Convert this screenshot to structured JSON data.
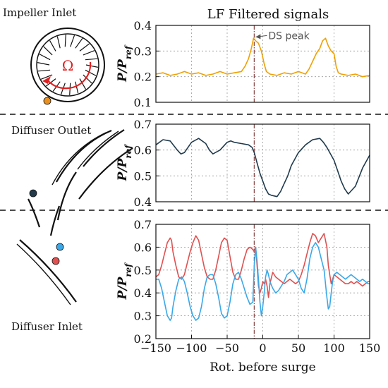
{
  "figure": {
    "title": "LF Filtered signals",
    "left_labels": [
      "Impeller Inlet",
      "Diffuser Outlet",
      "Diffuser Inlet"
    ],
    "omega_symbol": "Ω"
  },
  "colors": {
    "impeller_signal": "#f0a000",
    "diffuser_outlet_signal": "#1f3a4d",
    "diffuser_inlet_red": "#e05050",
    "diffuser_inlet_blue": "#3aa8e8",
    "sensor_orange": "#e89020",
    "sensor_dark": "#223a4a",
    "sensor_red": "#e05050",
    "sensor_blue": "#3aa8e8",
    "rotation_arrow": "#e02020",
    "marker_line": "#8b4a4a"
  },
  "chart_data": [
    {
      "type": "line",
      "panel": "Impeller Inlet",
      "title": "LF Filtered signals",
      "ylabel": "P/Pref",
      "xlim": [
        -150,
        150
      ],
      "ylim": [
        0.1,
        0.4
      ],
      "yticks": [
        0.1,
        0.2,
        0.3,
        0.4
      ],
      "grid": true,
      "marker_x": -12,
      "annotation": {
        "text": "DS peak",
        "x": -12,
        "y": 0.355
      },
      "series": [
        {
          "color": "#f0a000",
          "x": [
            -150,
            -140,
            -130,
            -120,
            -110,
            -100,
            -90,
            -80,
            -70,
            -60,
            -50,
            -40,
            -30,
            -25,
            -20,
            -16,
            -13,
            -10,
            -6,
            -2,
            2,
            5,
            10,
            20,
            30,
            40,
            50,
            60,
            65,
            70,
            75,
            80,
            84,
            88,
            92,
            96,
            100,
            103,
            106,
            110,
            120,
            130,
            140,
            150
          ],
          "y": [
            0.21,
            0.215,
            0.205,
            0.21,
            0.22,
            0.21,
            0.215,
            0.205,
            0.21,
            0.22,
            0.21,
            0.215,
            0.22,
            0.24,
            0.27,
            0.31,
            0.35,
            0.34,
            0.33,
            0.3,
            0.25,
            0.22,
            0.21,
            0.205,
            0.215,
            0.21,
            0.22,
            0.21,
            0.23,
            0.26,
            0.29,
            0.31,
            0.34,
            0.35,
            0.32,
            0.3,
            0.29,
            0.24,
            0.215,
            0.21,
            0.205,
            0.21,
            0.2,
            0.205
          ]
        }
      ]
    },
    {
      "type": "line",
      "panel": "Diffuser Outlet",
      "ylabel": "P/Pref",
      "xlim": [
        -150,
        150
      ],
      "ylim": [
        0.4,
        0.7
      ],
      "yticks": [
        0.4,
        0.5,
        0.6,
        0.7
      ],
      "grid": true,
      "marker_x": -12,
      "series": [
        {
          "color": "#1f3a4d",
          "x": [
            -150,
            -140,
            -130,
            -120,
            -115,
            -110,
            -100,
            -90,
            -80,
            -75,
            -70,
            -60,
            -50,
            -45,
            -40,
            -30,
            -20,
            -15,
            -12,
            -8,
            -4,
            0,
            4,
            8,
            12,
            20,
            25,
            30,
            35,
            40,
            50,
            60,
            70,
            80,
            85,
            90,
            100,
            105,
            110,
            115,
            120,
            130,
            140,
            150
          ],
          "y": [
            0.62,
            0.64,
            0.635,
            0.6,
            0.585,
            0.59,
            0.63,
            0.645,
            0.625,
            0.6,
            0.585,
            0.6,
            0.63,
            0.635,
            0.63,
            0.625,
            0.62,
            0.61,
            0.59,
            0.55,
            0.51,
            0.48,
            0.45,
            0.43,
            0.425,
            0.42,
            0.44,
            0.47,
            0.5,
            0.54,
            0.59,
            0.62,
            0.64,
            0.645,
            0.63,
            0.61,
            0.56,
            0.52,
            0.48,
            0.45,
            0.43,
            0.46,
            0.53,
            0.58
          ]
        }
      ]
    },
    {
      "type": "line",
      "panel": "Diffuser Inlet",
      "ylabel": "P/Pref",
      "xlabel": "Rot. before surge",
      "xlim": [
        -150,
        150
      ],
      "ylim": [
        0.2,
        0.7
      ],
      "yticks": [
        0.2,
        0.3,
        0.4,
        0.5,
        0.6,
        0.7
      ],
      "xticks": [
        -150,
        -100,
        -50,
        0,
        50,
        100,
        150
      ],
      "grid": true,
      "marker_x": -12,
      "series": [
        {
          "color": "#e05050",
          "x": [
            -150,
            -146,
            -142,
            -138,
            -134,
            -130,
            -128,
            -126,
            -122,
            -118,
            -114,
            -110,
            -106,
            -102,
            -98,
            -94,
            -90,
            -86,
            -82,
            -78,
            -74,
            -70,
            -66,
            -62,
            -58,
            -54,
            -50,
            -46,
            -42,
            -38,
            -34,
            -30,
            -26,
            -22,
            -18,
            -14,
            -12,
            -10,
            -8,
            -6,
            -4,
            -2,
            0,
            2,
            4,
            6,
            8,
            10,
            14,
            18,
            22,
            26,
            30,
            34,
            38,
            42,
            46,
            50,
            54,
            58,
            62,
            66,
            70,
            74,
            78,
            82,
            86,
            90,
            92,
            94,
            96,
            98,
            100,
            104,
            108,
            112,
            116,
            120,
            124,
            128,
            132,
            136,
            140,
            144,
            148,
            150
          ],
          "y": [
            0.47,
            0.48,
            0.52,
            0.57,
            0.62,
            0.64,
            0.63,
            0.58,
            0.52,
            0.47,
            0.46,
            0.48,
            0.53,
            0.58,
            0.62,
            0.65,
            0.63,
            0.57,
            0.51,
            0.47,
            0.46,
            0.46,
            0.5,
            0.56,
            0.62,
            0.64,
            0.63,
            0.56,
            0.49,
            0.46,
            0.46,
            0.5,
            0.55,
            0.59,
            0.6,
            0.59,
            0.58,
            0.6,
            0.52,
            0.43,
            0.4,
            0.42,
            0.45,
            0.44,
            0.46,
            0.43,
            0.38,
            0.44,
            0.49,
            0.47,
            0.46,
            0.45,
            0.44,
            0.45,
            0.46,
            0.45,
            0.44,
            0.45,
            0.48,
            0.52,
            0.57,
            0.62,
            0.66,
            0.65,
            0.62,
            0.64,
            0.66,
            0.6,
            0.52,
            0.48,
            0.44,
            0.46,
            0.48,
            0.47,
            0.46,
            0.45,
            0.44,
            0.44,
            0.45,
            0.44,
            0.45,
            0.44,
            0.43,
            0.44,
            0.45,
            0.45
          ]
        },
        {
          "color": "#3aa8e8",
          "x": [
            -150,
            -146,
            -142,
            -138,
            -134,
            -130,
            -128,
            -126,
            -122,
            -118,
            -114,
            -110,
            -106,
            -102,
            -98,
            -94,
            -90,
            -86,
            -82,
            -78,
            -74,
            -70,
            -66,
            -62,
            -58,
            -54,
            -50,
            -46,
            -42,
            -38,
            -34,
            -30,
            -26,
            -22,
            -18,
            -14,
            -12,
            -10,
            -8,
            -6,
            -4,
            -2,
            0,
            2,
            4,
            6,
            8,
            10,
            14,
            18,
            22,
            26,
            30,
            34,
            38,
            42,
            46,
            50,
            54,
            58,
            62,
            66,
            70,
            74,
            78,
            82,
            86,
            90,
            92,
            94,
            96,
            98,
            100,
            104,
            108,
            112,
            116,
            120,
            124,
            128,
            132,
            136,
            140,
            144,
            148,
            150
          ],
          "y": [
            0.46,
            0.46,
            0.42,
            0.36,
            0.3,
            0.28,
            0.29,
            0.34,
            0.41,
            0.46,
            0.47,
            0.45,
            0.4,
            0.34,
            0.3,
            0.28,
            0.29,
            0.34,
            0.42,
            0.47,
            0.48,
            0.48,
            0.44,
            0.38,
            0.31,
            0.29,
            0.3,
            0.36,
            0.44,
            0.48,
            0.49,
            0.46,
            0.42,
            0.38,
            0.35,
            0.36,
            0.52,
            0.6,
            0.54,
            0.46,
            0.36,
            0.3,
            0.34,
            0.4,
            0.47,
            0.5,
            0.48,
            0.45,
            0.42,
            0.4,
            0.41,
            0.43,
            0.45,
            0.48,
            0.49,
            0.5,
            0.48,
            0.46,
            0.42,
            0.4,
            0.46,
            0.55,
            0.6,
            0.62,
            0.6,
            0.55,
            0.5,
            0.38,
            0.33,
            0.34,
            0.4,
            0.45,
            0.48,
            0.49,
            0.48,
            0.47,
            0.46,
            0.47,
            0.48,
            0.47,
            0.46,
            0.45,
            0.46,
            0.45,
            0.44,
            0.44
          ]
        }
      ]
    }
  ]
}
